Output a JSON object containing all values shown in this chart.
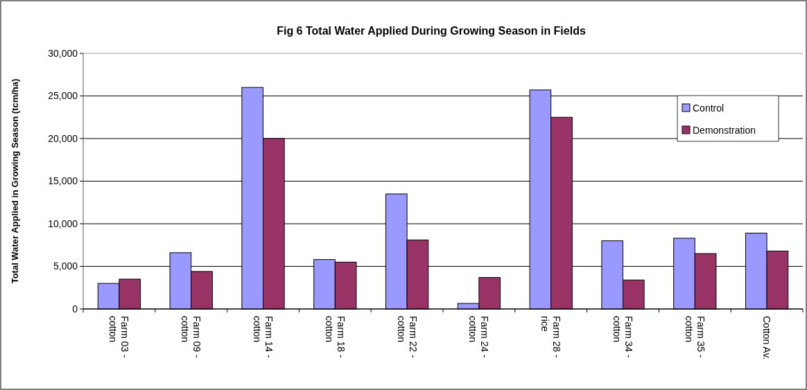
{
  "chart_data": {
    "type": "bar",
    "title": "Fig  6   Total Water Applied During Growing Season in Fields",
    "ylabel": "Total Water Applied in Growing Season (tcm/ha)",
    "categories": [
      "Farm 03 -\ncotton",
      "Farm 09 -\ncotton",
      "Farm 14 -\ncotton",
      "Farm 18 -\ncotton",
      "Farm 22 -\ncotton",
      "Farm 24 -\ncotton",
      "Farm 28 -\nrice",
      "Farm 34 -\ncotton",
      "Farm 35 -\ncotton",
      "Cotton Av."
    ],
    "series": [
      {
        "name": "Control",
        "color": "#9999ff",
        "values": [
          3000,
          6600,
          26000,
          5800,
          13500,
          650,
          25700,
          8000,
          8300,
          8900
        ]
      },
      {
        "name": "Demonstration",
        "color": "#993366",
        "values": [
          3500,
          4400,
          20000,
          5500,
          8100,
          3700,
          22500,
          3400,
          6500,
          6800
        ]
      }
    ],
    "ylim": [
      0,
      30000
    ],
    "yticks": [
      {
        "value": 0,
        "label": "0"
      },
      {
        "value": 5000,
        "label": "5,000"
      },
      {
        "value": 10000,
        "label": "10,000"
      },
      {
        "value": 15000,
        "label": "15,000"
      },
      {
        "value": 20000,
        "label": "20,000"
      },
      {
        "value": 25000,
        "label": "25,000"
      },
      {
        "value": 30000,
        "label": "30,000"
      }
    ],
    "grid": "y",
    "legend": "right"
  }
}
